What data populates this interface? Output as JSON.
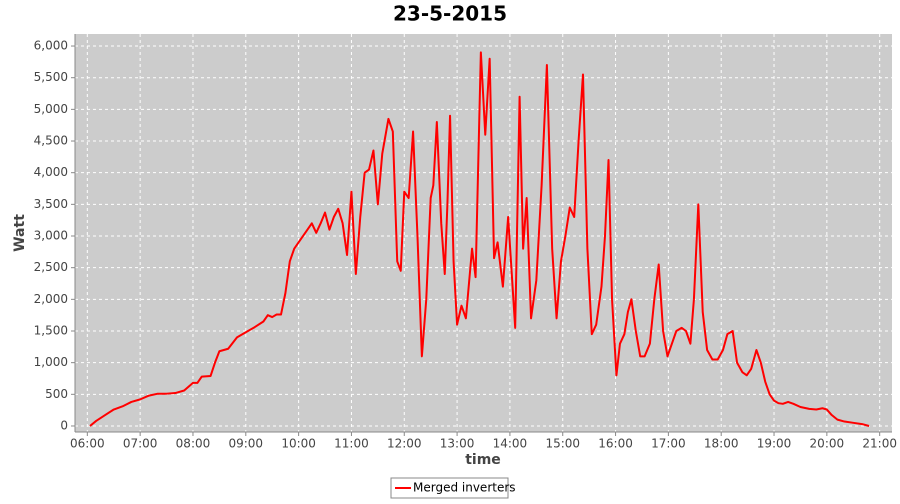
{
  "chart_data": {
    "type": "line",
    "title": "23-5-2015",
    "x_label": "time",
    "y_label": "Watt",
    "xlim": [
      "05:46",
      "21:14"
    ],
    "xticks": [
      "06:00",
      "07:00",
      "08:00",
      "09:00",
      "10:00",
      "11:00",
      "12:00",
      "13:00",
      "14:00",
      "15:00",
      "16:00",
      "17:00",
      "18:00",
      "19:00",
      "20:00",
      "21:00"
    ],
    "ylim": [
      -95,
      6190
    ],
    "yticks": [
      0,
      500,
      {
        "value": 1000,
        "label": "1,000"
      },
      {
        "value": 1500,
        "label": "1,500"
      },
      {
        "value": 2000,
        "label": "2,000"
      },
      {
        "value": 2500,
        "label": "2,500"
      },
      {
        "value": 3000,
        "label": "3,000"
      },
      {
        "value": 3500,
        "label": "3,500"
      },
      {
        "value": 4000,
        "label": "4,000"
      },
      {
        "value": 4500,
        "label": "4,500"
      },
      {
        "value": 5000,
        "label": "5,000"
      },
      {
        "value": 5500,
        "label": "5,500"
      },
      {
        "value": 6000,
        "label": "6,000"
      }
    ],
    "grid": true,
    "legend": "bottom",
    "x": [
      "06:03",
      "06:10",
      "06:20",
      "06:30",
      "06:40",
      "06:50",
      "07:00",
      "07:10",
      "07:20",
      "07:30",
      "07:40",
      "07:50",
      "08:00",
      "08:05",
      "08:10",
      "08:20",
      "08:25",
      "08:30",
      "08:40",
      "08:50",
      "09:00",
      "09:10",
      "09:20",
      "09:25",
      "09:30",
      "09:35",
      "09:40",
      "09:45",
      "09:50",
      "09:55",
      "10:00",
      "10:10",
      "10:15",
      "10:20",
      "10:25",
      "10:30",
      "10:35",
      "10:40",
      "10:45",
      "10:50",
      "10:55",
      "11:00",
      "11:05",
      "11:10",
      "11:15",
      "11:20",
      "11:25",
      "11:30",
      "11:35",
      "11:42",
      "11:47",
      "11:52",
      "11:56",
      "12:00",
      "12:05",
      "12:10",
      "12:15",
      "12:20",
      "12:25",
      "12:30",
      "12:33",
      "12:37",
      "12:42",
      "12:46",
      "12:49",
      "12:52",
      "12:56",
      "13:00",
      "13:05",
      "13:10",
      "13:17",
      "13:21",
      "13:27",
      "13:32",
      "13:37",
      "13:42",
      "13:46",
      "13:52",
      "13:58",
      "14:06",
      "14:11",
      "14:15",
      "14:19",
      "14:24",
      "14:30",
      "14:36",
      "14:42",
      "14:48",
      "14:53",
      "14:58",
      "15:03",
      "15:08",
      "15:13",
      "15:18",
      "15:23",
      "15:28",
      "15:33",
      "15:38",
      "15:44",
      "15:48",
      "15:52",
      "15:56",
      "16:01",
      "16:05",
      "16:10",
      "16:14",
      "16:18",
      "16:23",
      "16:28",
      "16:33",
      "16:39",
      "16:44",
      "16:49",
      "16:54",
      "16:59",
      "17:04",
      "17:09",
      "17:15",
      "17:20",
      "17:25",
      "17:29",
      "17:34",
      "17:39",
      "17:44",
      "17:50",
      "17:56",
      "18:02",
      "18:07",
      "18:13",
      "18:18",
      "18:24",
      "18:29",
      "18:34",
      "18:40",
      "18:45",
      "18:50",
      "18:55",
      "19:00",
      "19:05",
      "19:10",
      "19:16",
      "19:22",
      "19:30",
      "19:40",
      "19:48",
      "19:55",
      "20:00",
      "20:05",
      "20:12",
      "20:20",
      "20:30",
      "20:40",
      "20:48"
    ],
    "series": [
      {
        "name": "Merged inverters",
        "color": "#ff0000",
        "values": [
          0,
          80,
          170,
          260,
          310,
          380,
          420,
          480,
          510,
          510,
          520,
          560,
          680,
          680,
          780,
          790,
          1000,
          1180,
          1220,
          1400,
          1480,
          1560,
          1650,
          1750,
          1720,
          1760,
          1760,
          2100,
          2600,
          2800,
          2900,
          3100,
          3200,
          3050,
          3200,
          3370,
          3100,
          3300,
          3430,
          3200,
          2700,
          3700,
          2400,
          3300,
          4000,
          4050,
          4350,
          3500,
          4300,
          4850,
          4650,
          2600,
          2450,
          3700,
          3600,
          4650,
          3000,
          1100,
          2000,
          3600,
          3800,
          4800,
          3200,
          2400,
          3500,
          4900,
          2600,
          1600,
          1900,
          1700,
          2800,
          2350,
          5900,
          4600,
          5800,
          2650,
          2900,
          2200,
          3300,
          1550,
          5200,
          2800,
          3600,
          1700,
          2300,
          3800,
          5700,
          2800,
          1700,
          2600,
          3000,
          3450,
          3300,
          4500,
          5550,
          2800,
          1450,
          1600,
          2200,
          3000,
          4200,
          2000,
          800,
          1300,
          1450,
          1800,
          2000,
          1500,
          1100,
          1100,
          1300,
          2000,
          2550,
          1500,
          1100,
          1300,
          1500,
          1550,
          1500,
          1300,
          2000,
          3500,
          1800,
          1200,
          1050,
          1050,
          1200,
          1450,
          1500,
          1000,
          850,
          800,
          900,
          1200,
          1000,
          700,
          500,
          400,
          360,
          350,
          380,
          350,
          300,
          270,
          260,
          280,
          260,
          180,
          100,
          70,
          50,
          30,
          0
        ]
      }
    ]
  }
}
